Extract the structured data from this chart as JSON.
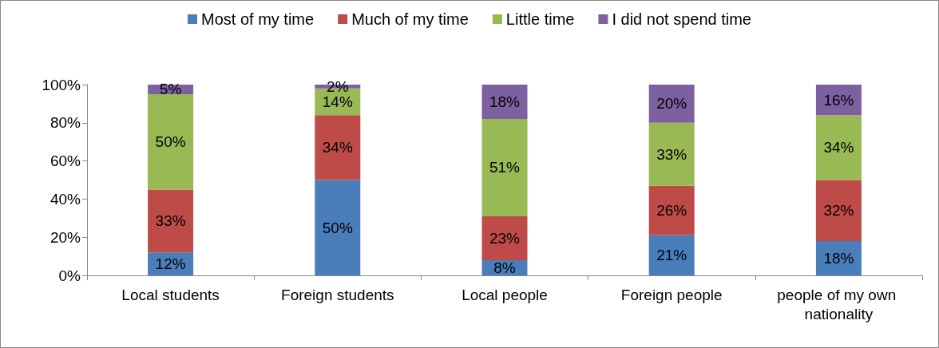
{
  "chart_data": {
    "type": "bar",
    "stacked": true,
    "categories": [
      "Local students",
      "Foreign students",
      "Local people",
      "Foreign people",
      "people of my own nationality"
    ],
    "series": [
      {
        "name": "Most of my time",
        "color": "#4a7ebb",
        "values": [
          12,
          50,
          8,
          21,
          18
        ],
        "value_labels": [
          "12%",
          "50%",
          "8%",
          "21%",
          "18%"
        ]
      },
      {
        "name": "Much of my time",
        "color": "#be4b48",
        "values": [
          33,
          34,
          23,
          26,
          32
        ],
        "value_labels": [
          "33%",
          "34%",
          "23%",
          "26%",
          "32%"
        ]
      },
      {
        "name": "Little time",
        "color": "#98b954",
        "values": [
          50,
          14,
          51,
          33,
          34
        ],
        "value_labels": [
          "50%",
          "14%",
          "51%",
          "33%",
          "34%"
        ]
      },
      {
        "name": "I did not spend time",
        "color": "#7d60a0",
        "values": [
          5,
          2,
          18,
          20,
          16
        ],
        "value_labels": [
          "5%",
          "2%",
          "18%",
          "20%",
          "16%"
        ]
      }
    ],
    "ylim": [
      0,
      100
    ],
    "yticks": [
      {
        "value": 0,
        "label": "0%"
      },
      {
        "value": 20,
        "label": "20%"
      },
      {
        "value": 40,
        "label": "40%"
      },
      {
        "value": 60,
        "label": "60%"
      },
      {
        "value": 80,
        "label": "80%"
      },
      {
        "value": 100,
        "label": "100%"
      }
    ],
    "grid": false,
    "legend": "top"
  }
}
